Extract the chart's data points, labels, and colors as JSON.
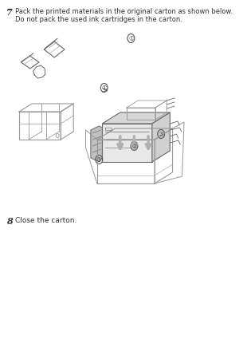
{
  "bg_color": "#ffffff",
  "fig_width": 3.0,
  "fig_height": 4.25,
  "dpi": 100,
  "step7_number": "7",
  "step7_line1": "Pack the printed materials in the original carton as shown below.",
  "step7_line2": "Do not pack the used ink cartridges in the carton.",
  "step8_number": "8",
  "step8_text": "Close the carton.",
  "number_fontsize": 8,
  "text_fontsize": 6.0,
  "text_color": "#333333",
  "diagram_color": "#999999",
  "diagram_color_dark": "#666666",
  "arrow_color": "#bbbbbb",
  "label_color": "#555555"
}
